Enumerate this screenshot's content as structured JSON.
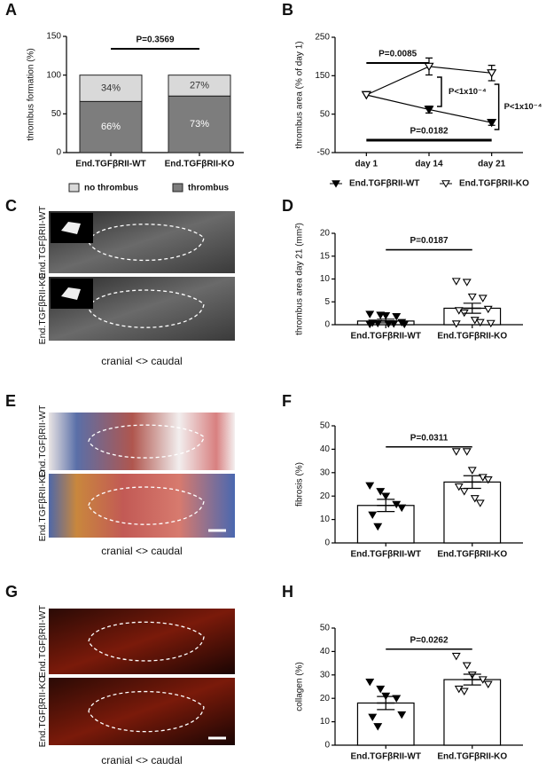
{
  "chart_data": [
    {
      "type": "stacked",
      "panel": "A",
      "ylabel": "thrombus formation (%)",
      "categories": [
        "End.TGFβRII-WT",
        "End.TGFβRII-KO"
      ],
      "series": [
        {
          "name": "no thrombus",
          "color": "#d9d9d9",
          "values": [
            34,
            27
          ],
          "value_labels": [
            "34%",
            "27%"
          ]
        },
        {
          "name": "thrombus",
          "color": "#7d7d7d",
          "values": [
            66,
            73
          ],
          "value_labels": [
            "66%",
            "73%"
          ]
        }
      ],
      "ylim": [
        0,
        150
      ],
      "yticks": [
        0,
        50,
        100,
        150
      ],
      "grid": false,
      "annotations": [
        "P=0.3569"
      ]
    },
    {
      "type": "line",
      "panel": "B",
      "ylabel": "thrombus area (% of day 1)",
      "categories": [
        "day 1",
        "day 14",
        "day 21"
      ],
      "series": [
        {
          "name": "End.TGFβRII-WT",
          "color": "#000000",
          "marker_fill": "#000000",
          "values": [
            100,
            62,
            28
          ],
          "errors": [
            0,
            9,
            7
          ]
        },
        {
          "name": "End.TGFβRII-KO",
          "color": "#000000",
          "marker_fill": "#ffffff",
          "values": [
            100,
            174,
            157
          ],
          "errors": [
            0,
            22,
            20
          ]
        }
      ],
      "ylim": [
        -50,
        250
      ],
      "yticks": [
        -50,
        50,
        150,
        250
      ],
      "grid": false,
      "annotations": [
        "P=0.0085",
        "P=0.0182",
        "P<1x10⁻⁴",
        "P<1x10⁻⁴"
      ]
    },
    {
      "type": "scatterbar",
      "panel": "D",
      "ylabel": "thrombus area day 21 (mm²)",
      "categories": [
        "End.TGFβRII-WT",
        "End.TGFβRII-KO"
      ],
      "values": [
        0.8,
        3.6
      ],
      "errors": [
        0.4,
        1.1
      ],
      "marker_fills": [
        "#000000",
        "#ffffff"
      ],
      "points": [
        [
          2.3,
          2.1,
          2.0,
          1.8,
          0.5,
          0.4,
          0.3,
          0.2,
          0.2,
          0.1,
          0.1
        ],
        [
          9.5,
          9.3,
          6.1,
          5.8,
          3.4,
          3.1,
          2.6,
          1.0,
          0.5,
          0.3,
          0.2
        ]
      ],
      "ylim": [
        0,
        20
      ],
      "yticks": [
        0,
        5,
        10,
        15,
        20
      ],
      "grid": false,
      "annotations": [
        "P=0.0187"
      ]
    },
    {
      "type": "scatterbar",
      "panel": "F",
      "ylabel": "fibrosis (%)",
      "categories": [
        "End.TGFβRII-WT",
        "End.TGFβRII-KO"
      ],
      "values": [
        16,
        26
      ],
      "errors": [
        2.6,
        2.7
      ],
      "marker_fills": [
        "#000000",
        "#ffffff"
      ],
      "points": [
        [
          24.5,
          22,
          20,
          16.5,
          15,
          12,
          7
        ],
        [
          39,
          39,
          31,
          28,
          27,
          24,
          22,
          19,
          17
        ]
      ],
      "ylim": [
        0,
        50
      ],
      "yticks": [
        0,
        10,
        20,
        30,
        40,
        50
      ],
      "grid": false,
      "annotations": [
        "P=0.0311"
      ]
    },
    {
      "type": "scatterbar",
      "panel": "H",
      "ylabel": "collagen (%)",
      "categories": [
        "End.TGFβRII-WT",
        "End.TGFβRII-KO"
      ],
      "values": [
        18,
        28
      ],
      "errors": [
        2.8,
        2.3
      ],
      "marker_fills": [
        "#000000",
        "#ffffff"
      ],
      "points": [
        [
          27,
          24,
          21,
          20,
          13,
          12,
          8
        ],
        [
          38,
          34,
          30,
          28,
          26,
          24,
          23
        ]
      ],
      "ylim": [
        0,
        50
      ],
      "yticks": [
        0,
        10,
        20,
        30,
        40,
        50
      ],
      "grid": false,
      "annotations": [
        "P=0.0262"
      ]
    }
  ],
  "image_panels": [
    {
      "panel": "C",
      "labels": [
        "End.TGFβRII-WT",
        "End.TGFβRII-KO"
      ],
      "caption": "cranial <> caudal"
    },
    {
      "panel": "E",
      "labels": [
        "End.TGFβRII-WT",
        "End.TGFβRII-KO"
      ],
      "caption": "cranial <> caudal"
    },
    {
      "panel": "G",
      "labels": [
        "End.TGFβRII-WT",
        "End.TGFβRII-KO"
      ],
      "caption": "cranial <> caudal"
    }
  ]
}
